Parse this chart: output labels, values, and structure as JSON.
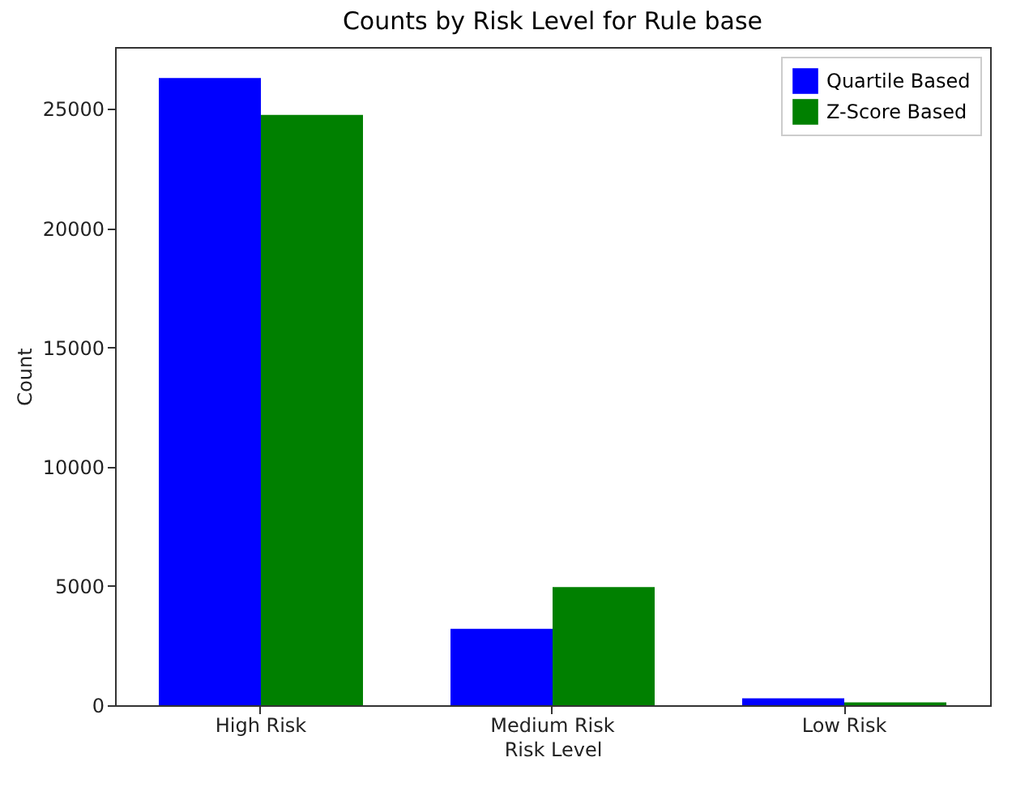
{
  "chart_data": {
    "type": "bar",
    "title": "Counts by Risk Level for Rule base",
    "xlabel": "Risk Level",
    "ylabel": "Count",
    "categories": [
      "High Risk",
      "Medium Risk",
      "Low Risk"
    ],
    "series": [
      {
        "name": "Quartile Based",
        "color": "#0000ff",
        "values": [
          26300,
          3200,
          290
        ]
      },
      {
        "name": "Z-Score Based",
        "color": "#008000",
        "values": [
          24750,
          4950,
          120
        ]
      }
    ],
    "ylim": [
      0,
      27600
    ],
    "yticks": [
      0,
      5000,
      10000,
      15000,
      20000,
      25000
    ],
    "grid": false,
    "legend": "top right"
  }
}
